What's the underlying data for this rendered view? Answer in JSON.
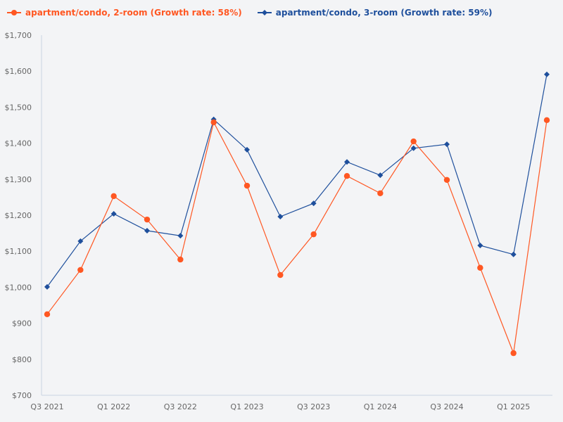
{
  "legend": {
    "items": [
      {
        "label": "apartment/condo, 2-room (Growth rate: 58%)",
        "color": "#ff5722",
        "marker": "circle"
      },
      {
        "label": "apartment/condo, 3-room (Growth rate: 59%)",
        "color": "#1e4f9c",
        "marker": "diamond"
      }
    ]
  },
  "chart_data": {
    "type": "line",
    "title": "",
    "xlabel": "",
    "ylabel": "",
    "ylim": [
      700,
      1700
    ],
    "y_ticks": [
      "$700",
      "$800",
      "$900",
      "$1,000",
      "$1,100",
      "$1,200",
      "$1,300",
      "$1,400",
      "$1,500",
      "$1,600",
      "$1,700"
    ],
    "x_tick_labels": [
      "Q3 2021",
      "Q1 2022",
      "Q3 2022",
      "Q1 2023",
      "Q3 2023",
      "Q1 2024",
      "Q3 2024",
      "Q1 2025"
    ],
    "categories": [
      "Q3 2021",
      "Q4 2021",
      "Q1 2022",
      "Q2 2022",
      "Q3 2022",
      "Q4 2022",
      "Q1 2023",
      "Q2 2023",
      "Q3 2023",
      "Q4 2023",
      "Q1 2024",
      "Q2 2024",
      "Q3 2024",
      "Q4 2024",
      "Q1 2025",
      "Q2 2025"
    ],
    "grid": false,
    "legend_position": "top-left",
    "series": [
      {
        "name": "apartment/condo, 2-room (Growth rate: 58%)",
        "color": "#ff5722",
        "marker": "circle",
        "values": [
          925,
          1048,
          1253,
          1188,
          1077,
          1458,
          1282,
          1034,
          1147,
          1309,
          1261,
          1405,
          1298,
          1054,
          817,
          1464
        ]
      },
      {
        "name": "apartment/condo, 3-room (Growth rate: 59%)",
        "color": "#1e4f9c",
        "marker": "diamond",
        "values": [
          1001,
          1128,
          1204,
          1157,
          1143,
          1466,
          1382,
          1196,
          1233,
          1348,
          1311,
          1386,
          1397,
          1116,
          1091,
          1591
        ]
      }
    ]
  }
}
